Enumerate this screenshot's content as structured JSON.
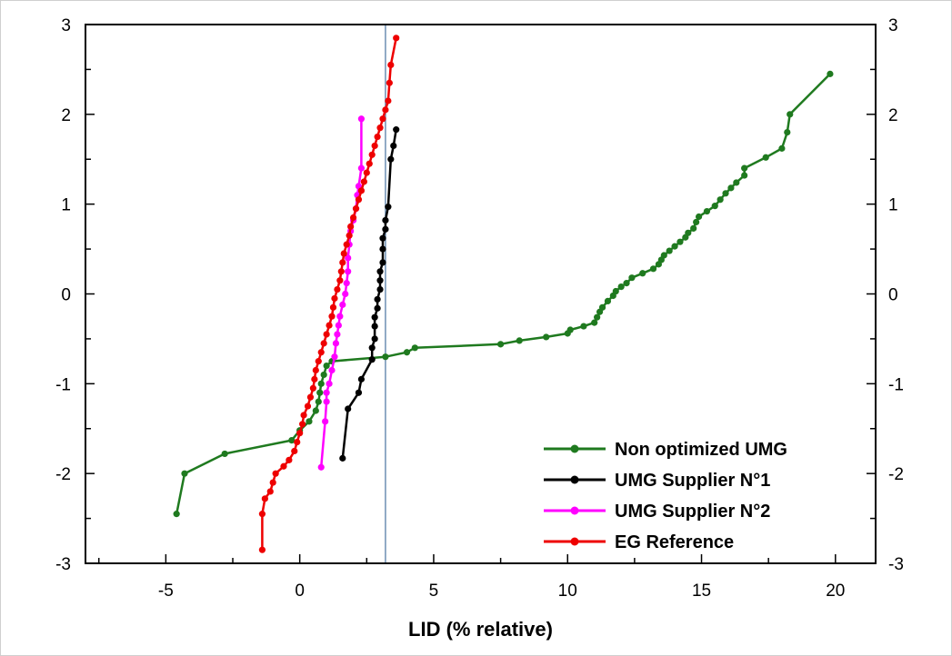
{
  "chart_data": {
    "type": "scatter",
    "title": "",
    "xlabel": "LID (% relative)",
    "ylabel": "",
    "xlim": [
      -8,
      21.5
    ],
    "ylim": [
      -3,
      3
    ],
    "xticks": [
      -5,
      0,
      5,
      10,
      15,
      20
    ],
    "xtick_labels": [
      "-5",
      "0",
      "5",
      "10",
      "15",
      "20"
    ],
    "yticks": [
      -3,
      -2,
      -1,
      0,
      1,
      2,
      3
    ],
    "ytick_labels": [
      "-3",
      "-2",
      "-1",
      "0",
      "1",
      "2",
      "3"
    ],
    "right_ytick_labels": [
      "-3",
      "-2",
      "-1",
      "0",
      "1",
      "2",
      "3"
    ],
    "reference_line_x": 3.2,
    "grid": false,
    "legend_position": "bottom-right",
    "series": [
      {
        "name": "Non optimized UMG",
        "color": "#1f7a1f",
        "points": [
          [
            -4.6,
            -2.45
          ],
          [
            -4.3,
            -2.0
          ],
          [
            -2.8,
            -1.78
          ],
          [
            -0.3,
            -1.63
          ],
          [
            0.0,
            -1.52
          ],
          [
            0.35,
            -1.42
          ],
          [
            0.6,
            -1.3
          ],
          [
            0.7,
            -1.2
          ],
          [
            0.75,
            -1.1
          ],
          [
            0.8,
            -1.0
          ],
          [
            0.9,
            -0.9
          ],
          [
            1.0,
            -0.8
          ],
          [
            1.2,
            -0.75
          ],
          [
            3.2,
            -0.7
          ],
          [
            4.0,
            -0.65
          ],
          [
            4.3,
            -0.6
          ],
          [
            7.5,
            -0.56
          ],
          [
            8.2,
            -0.52
          ],
          [
            9.2,
            -0.48
          ],
          [
            10.0,
            -0.44
          ],
          [
            10.1,
            -0.4
          ],
          [
            10.6,
            -0.36
          ],
          [
            11.0,
            -0.32
          ],
          [
            11.1,
            -0.26
          ],
          [
            11.2,
            -0.2
          ],
          [
            11.3,
            -0.15
          ],
          [
            11.5,
            -0.08
          ],
          [
            11.7,
            -0.02
          ],
          [
            11.8,
            0.03
          ],
          [
            12.0,
            0.08
          ],
          [
            12.2,
            0.12
          ],
          [
            12.4,
            0.18
          ],
          [
            12.8,
            0.23
          ],
          [
            13.2,
            0.28
          ],
          [
            13.4,
            0.33
          ],
          [
            13.5,
            0.38
          ],
          [
            13.6,
            0.43
          ],
          [
            13.8,
            0.48
          ],
          [
            14.0,
            0.53
          ],
          [
            14.2,
            0.58
          ],
          [
            14.4,
            0.63
          ],
          [
            14.5,
            0.68
          ],
          [
            14.7,
            0.73
          ],
          [
            14.8,
            0.8
          ],
          [
            14.9,
            0.86
          ],
          [
            15.2,
            0.92
          ],
          [
            15.5,
            0.98
          ],
          [
            15.7,
            1.05
          ],
          [
            15.9,
            1.12
          ],
          [
            16.1,
            1.18
          ],
          [
            16.3,
            1.24
          ],
          [
            16.6,
            1.32
          ],
          [
            16.6,
            1.4
          ],
          [
            17.4,
            1.52
          ],
          [
            18.0,
            1.62
          ],
          [
            18.2,
            1.8
          ],
          [
            18.3,
            2.0
          ],
          [
            19.8,
            2.45
          ]
        ]
      },
      {
        "name": "UMG Supplier N°1",
        "color": "#000000",
        "points": [
          [
            1.6,
            -1.83
          ],
          [
            1.8,
            -1.28
          ],
          [
            2.2,
            -1.1
          ],
          [
            2.3,
            -0.95
          ],
          [
            2.7,
            -0.73
          ],
          [
            2.7,
            -0.6
          ],
          [
            2.8,
            -0.5
          ],
          [
            2.8,
            -0.36
          ],
          [
            2.8,
            -0.26
          ],
          [
            2.9,
            -0.16
          ],
          [
            2.9,
            -0.06
          ],
          [
            3.0,
            0.05
          ],
          [
            3.0,
            0.15
          ],
          [
            3.0,
            0.25
          ],
          [
            3.1,
            0.35
          ],
          [
            3.1,
            0.5
          ],
          [
            3.1,
            0.62
          ],
          [
            3.2,
            0.72
          ],
          [
            3.2,
            0.82
          ],
          [
            3.3,
            0.97
          ],
          [
            3.4,
            1.5
          ],
          [
            3.5,
            1.65
          ],
          [
            3.6,
            1.83
          ]
        ]
      },
      {
        "name": "UMG Supplier N°2",
        "color": "#ff00ff",
        "points": [
          [
            0.8,
            -1.93
          ],
          [
            0.95,
            -1.42
          ],
          [
            1.0,
            -1.2
          ],
          [
            1.0,
            -1.1
          ],
          [
            1.1,
            -1.0
          ],
          [
            1.2,
            -0.85
          ],
          [
            1.3,
            -0.7
          ],
          [
            1.35,
            -0.55
          ],
          [
            1.4,
            -0.45
          ],
          [
            1.45,
            -0.35
          ],
          [
            1.5,
            -0.25
          ],
          [
            1.6,
            -0.12
          ],
          [
            1.7,
            0.0
          ],
          [
            1.75,
            0.12
          ],
          [
            1.8,
            0.25
          ],
          [
            1.8,
            0.4
          ],
          [
            1.85,
            0.55
          ],
          [
            1.9,
            0.7
          ],
          [
            2.0,
            0.82
          ],
          [
            2.1,
            0.95
          ],
          [
            2.15,
            1.1
          ],
          [
            2.2,
            1.2
          ],
          [
            2.3,
            1.4
          ],
          [
            2.3,
            1.95
          ]
        ]
      },
      {
        "name": "EG Reference",
        "color": "#ee0000",
        "points": [
          [
            -1.4,
            -2.85
          ],
          [
            -1.4,
            -2.45
          ],
          [
            -1.3,
            -2.28
          ],
          [
            -1.1,
            -2.2
          ],
          [
            -1.0,
            -2.1
          ],
          [
            -0.9,
            -2.0
          ],
          [
            -0.6,
            -1.92
          ],
          [
            -0.4,
            -1.85
          ],
          [
            -0.2,
            -1.75
          ],
          [
            -0.1,
            -1.65
          ],
          [
            0.0,
            -1.55
          ],
          [
            0.1,
            -1.45
          ],
          [
            0.15,
            -1.35
          ],
          [
            0.3,
            -1.25
          ],
          [
            0.4,
            -1.15
          ],
          [
            0.5,
            -1.05
          ],
          [
            0.55,
            -0.95
          ],
          [
            0.6,
            -0.85
          ],
          [
            0.7,
            -0.75
          ],
          [
            0.8,
            -0.65
          ],
          [
            0.9,
            -0.55
          ],
          [
            1.0,
            -0.45
          ],
          [
            1.1,
            -0.35
          ],
          [
            1.2,
            -0.25
          ],
          [
            1.25,
            -0.15
          ],
          [
            1.3,
            -0.05
          ],
          [
            1.4,
            0.05
          ],
          [
            1.5,
            0.15
          ],
          [
            1.55,
            0.25
          ],
          [
            1.6,
            0.35
          ],
          [
            1.65,
            0.45
          ],
          [
            1.75,
            0.55
          ],
          [
            1.85,
            0.65
          ],
          [
            1.9,
            0.75
          ],
          [
            2.0,
            0.85
          ],
          [
            2.1,
            0.95
          ],
          [
            2.2,
            1.05
          ],
          [
            2.3,
            1.15
          ],
          [
            2.4,
            1.25
          ],
          [
            2.5,
            1.35
          ],
          [
            2.6,
            1.45
          ],
          [
            2.7,
            1.55
          ],
          [
            2.8,
            1.65
          ],
          [
            2.9,
            1.75
          ],
          [
            3.0,
            1.85
          ],
          [
            3.1,
            1.95
          ],
          [
            3.2,
            2.05
          ],
          [
            3.3,
            2.15
          ],
          [
            3.35,
            2.35
          ],
          [
            3.4,
            2.55
          ],
          [
            3.6,
            2.85
          ]
        ]
      }
    ]
  }
}
